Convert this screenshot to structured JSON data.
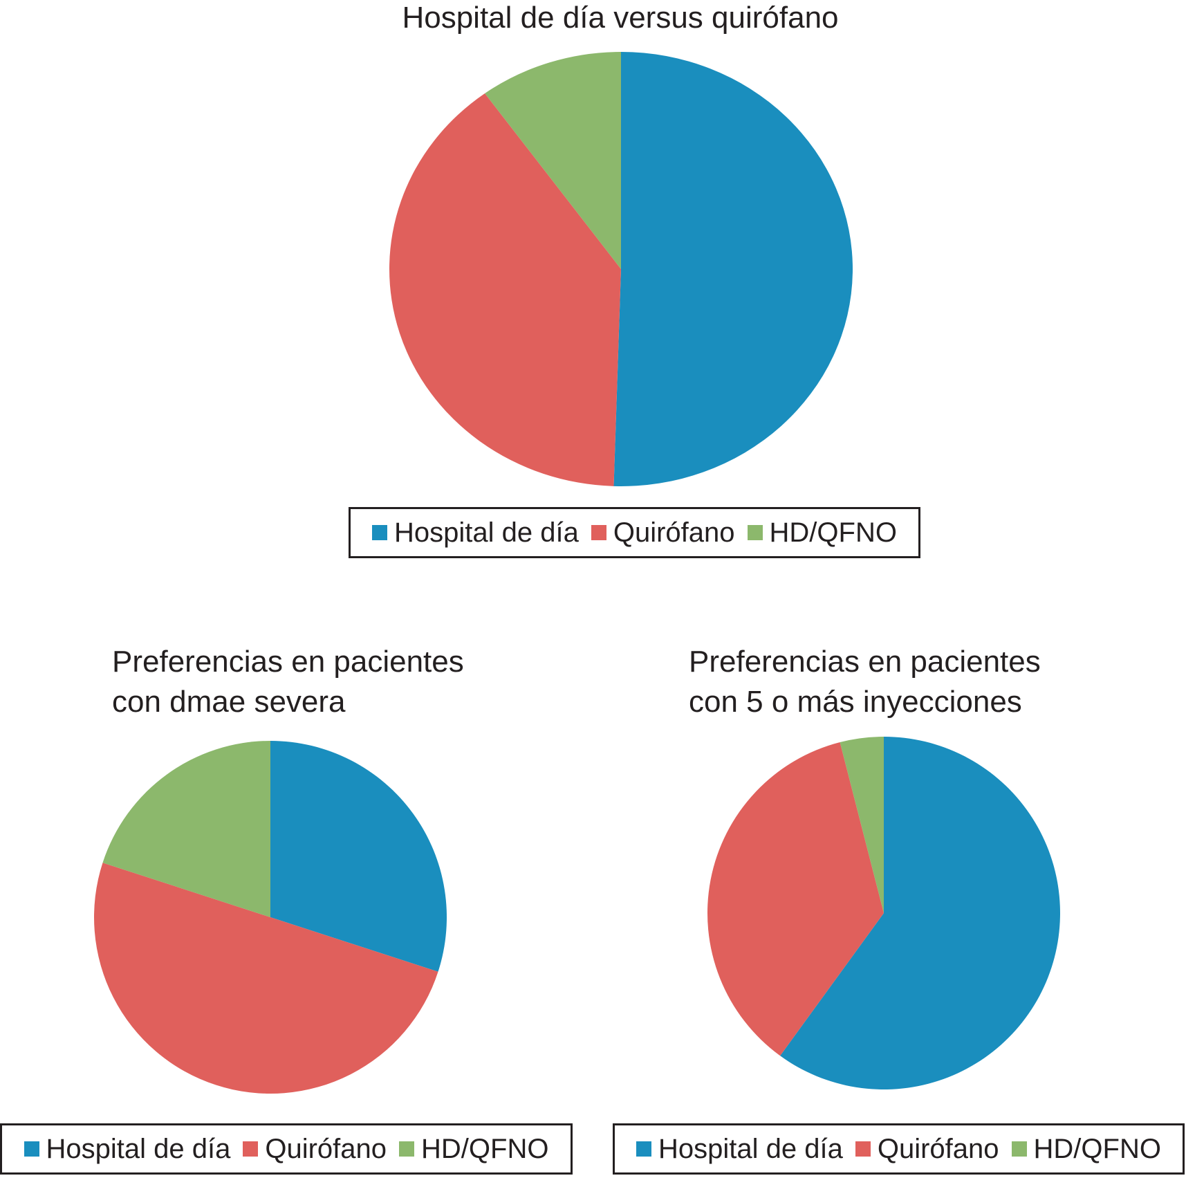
{
  "chart_data": [
    {
      "type": "pie",
      "title": "Hospital de día versus quirófano",
      "categories": [
        "Hospital de día",
        "Quirófano",
        "HD/QFNO"
      ],
      "values": [
        50.5,
        39.5,
        10.0
      ],
      "colors": [
        "#1a8ebe",
        "#e0605c",
        "#8cb86c"
      ],
      "legend": [
        "Hospital de día",
        "Quirófano",
        "HD/QFNO"
      ],
      "legend_placement": "bottom"
    },
    {
      "type": "pie",
      "title": [
        "Preferencias en pacientes",
        "con dmae severa"
      ],
      "categories": [
        "Hospital de día",
        "Quirófano",
        "HD/QFNO"
      ],
      "values": [
        30.0,
        50.0,
        20.0
      ],
      "colors": [
        "#1a8ebe",
        "#e0605c",
        "#8cb86c"
      ],
      "legend": [
        "Hospital de día",
        "Quirófano",
        "HD/QFNO"
      ],
      "legend_placement": "bottom"
    },
    {
      "type": "pie",
      "title": [
        "Preferencias en pacientes",
        "con 5 o más inyecciones"
      ],
      "categories": [
        "Hospital de día",
        "Quirófano",
        "HD/QFNO"
      ],
      "values": [
        60.0,
        36.0,
        4.0
      ],
      "colors": [
        "#1a8ebe",
        "#e0605c",
        "#8cb86c"
      ],
      "legend": [
        "Hospital de día",
        "Quirófano",
        "HD/QFNO"
      ],
      "legend_placement": "bottom"
    }
  ]
}
